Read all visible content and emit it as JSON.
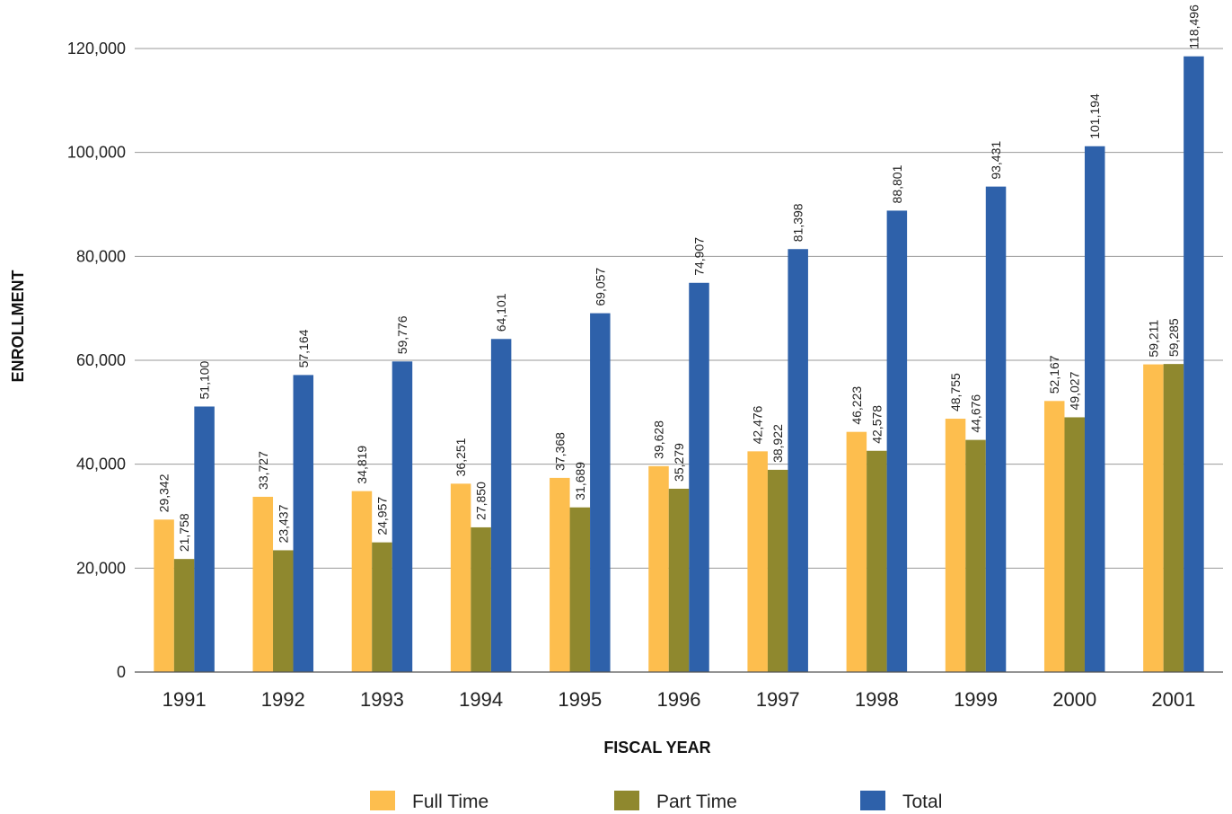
{
  "chart_data": {
    "type": "bar",
    "title": "",
    "xlabel": "FISCAL YEAR",
    "ylabel": "ENROLLMENT",
    "ylim": [
      0,
      120000
    ],
    "y_ticks": [
      "0",
      "20,000",
      "40,000",
      "60,000",
      "80,000",
      "100,000",
      "120,000"
    ],
    "y_tick_values": [
      0,
      20000,
      40000,
      60000,
      80000,
      100000,
      120000
    ],
    "grid": true,
    "legend_position": "bottom",
    "categories": [
      "1991",
      "1992",
      "1993",
      "1994",
      "1995",
      "1996",
      "1997",
      "1998",
      "1999",
      "2000",
      "2001"
    ],
    "series": [
      {
        "name": "Full Time",
        "color": "#FDBE4E",
        "values": [
          29342,
          33727,
          34819,
          36251,
          37368,
          39628,
          42476,
          46223,
          48755,
          52167,
          59211
        ],
        "labels": [
          "29,342",
          "33,727",
          "34,819",
          "36,251",
          "37,368",
          "39,628",
          "42,476",
          "46,223",
          "48,755",
          "52,167",
          "59,211"
        ]
      },
      {
        "name": "Part Time",
        "color": "#8F882E",
        "values": [
          21758,
          23437,
          24957,
          27850,
          31689,
          35279,
          38922,
          42578,
          44676,
          49027,
          59285
        ],
        "labels": [
          "21,758",
          "23,437",
          "24,957",
          "27,850",
          "31,689",
          "35,279",
          "38,922",
          "42,578",
          "44,676",
          "49,027",
          "59,285"
        ]
      },
      {
        "name": "Total",
        "color": "#2E61AA",
        "values": [
          51100,
          57164,
          59776,
          64101,
          69057,
          74907,
          81398,
          88801,
          93431,
          101194,
          118496
        ],
        "labels": [
          "51,100",
          "57,164",
          "59,776",
          "64,101",
          "69,057",
          "74,907",
          "81,398",
          "88,801",
          "93,431",
          "101,194",
          "118,496"
        ]
      }
    ]
  }
}
